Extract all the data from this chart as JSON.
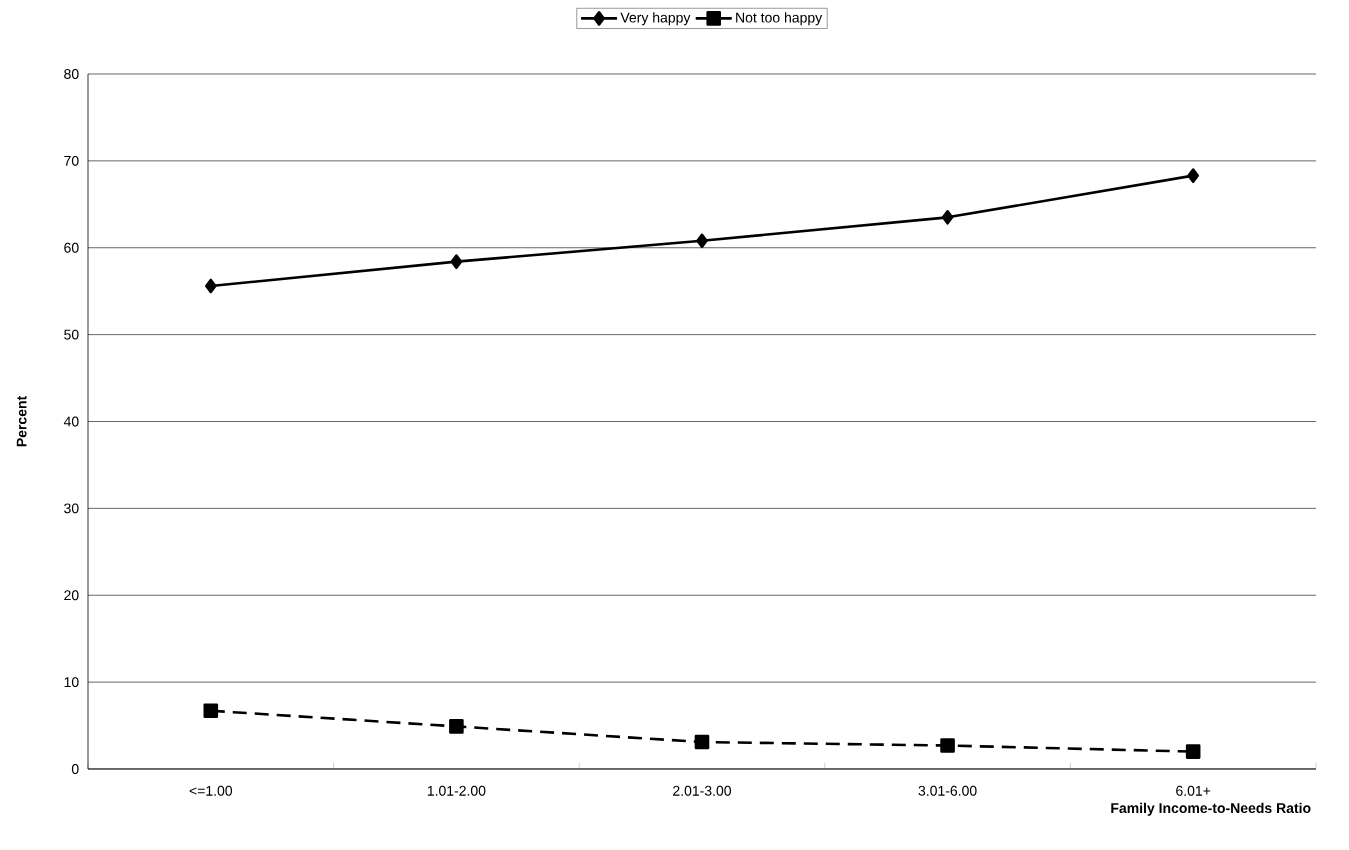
{
  "chart_data": {
    "type": "line",
    "xlabel": "Family Income-to-Needs Ratio",
    "ylabel": "Percent",
    "categories": [
      "<=1.00",
      "1.01-2.00",
      "2.01-3.00",
      "3.01-6.00",
      "6.01+"
    ],
    "series": [
      {
        "name": "Very happy",
        "color": "#000000",
        "marker": "diamond",
        "line_style": "solid",
        "values": [
          55.6,
          58.4,
          60.8,
          63.5,
          68.3
        ]
      },
      {
        "name": "Not too happy",
        "color": "#000000",
        "marker": "square",
        "line_style": "dashed",
        "values": [
          6.7,
          4.9,
          3.1,
          2.7,
          2.0
        ]
      }
    ],
    "ylim": [
      0,
      80
    ],
    "yticks": [
      0,
      10,
      20,
      30,
      40,
      50,
      60,
      70,
      80
    ],
    "grid": "y",
    "legend": "top"
  }
}
